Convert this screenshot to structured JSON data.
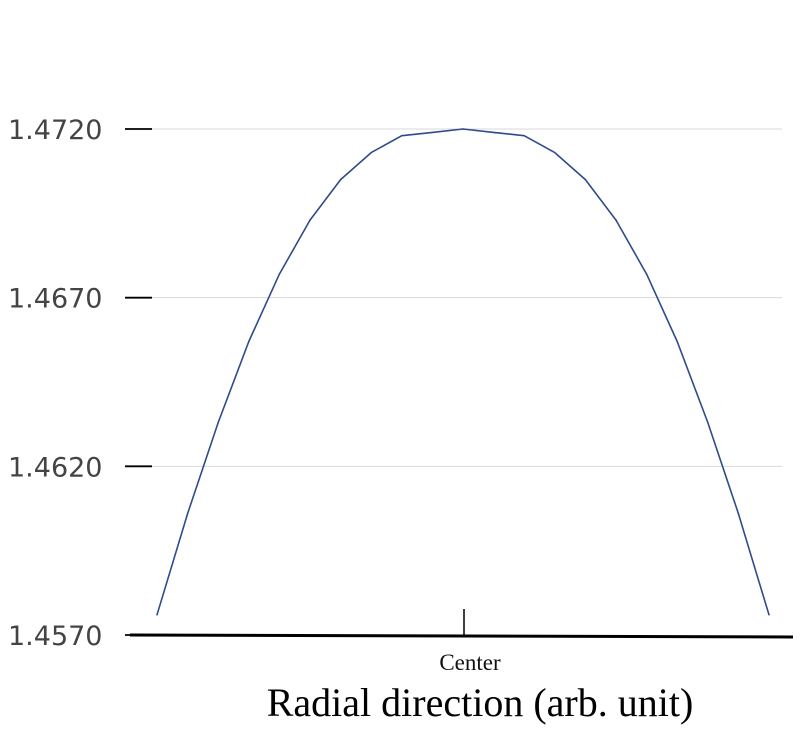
{
  "chart_data": {
    "type": "line",
    "xlabel": "Radial direction (arb. unit)",
    "categories": [
      "Center"
    ],
    "y_ticks": [
      "1.4570",
      "1.4620",
      "1.4670",
      "1.4720"
    ],
    "ylim": [
      1.457,
      1.4745
    ],
    "grid": true,
    "x": [
      -10,
      -9,
      -8,
      -7,
      -6,
      -5,
      -4,
      -3,
      -2,
      -1,
      0,
      1,
      2,
      3,
      4,
      5,
      6,
      7,
      8,
      9,
      10
    ],
    "series": [
      {
        "values": [
          1.4576,
          1.4606,
          1.4633,
          1.4657,
          1.4677,
          1.4693,
          1.4705,
          1.4713,
          1.4718,
          1.4719,
          1.472,
          1.4719,
          1.4718,
          1.4713,
          1.4705,
          1.4693,
          1.4677,
          1.4657,
          1.4633,
          1.4606,
          1.4576
        ],
        "color": "#2f4b8c"
      }
    ]
  }
}
